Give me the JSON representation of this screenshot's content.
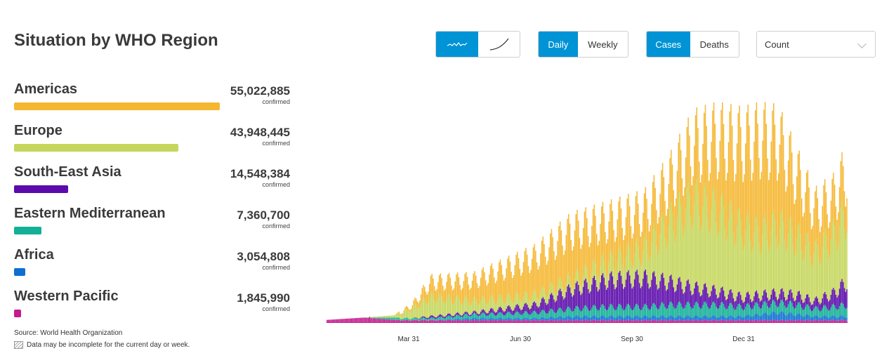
{
  "title": "Situation by WHO Region",
  "controls": {
    "chart_style": {
      "options": [
        "trend-icon",
        "cumulative-curve-icon"
      ],
      "selected": 0
    },
    "period": {
      "options": [
        "Daily",
        "Weekly"
      ],
      "selected": 0
    },
    "measure": {
      "options": [
        "Cases",
        "Deaths"
      ],
      "selected": 0
    },
    "scale_select": {
      "value": "Count",
      "icon": "chevron-down-icon"
    }
  },
  "regions": [
    {
      "name": "Americas",
      "value": "55,022,885",
      "count": 55022885,
      "sub": "confirmed",
      "color": "#f5b731"
    },
    {
      "name": "Europe",
      "value": "43,948,445",
      "count": 43948445,
      "sub": "confirmed",
      "color": "#c5d65b"
    },
    {
      "name": "South-East Asia",
      "value": "14,548,384",
      "count": 14548384,
      "sub": "confirmed",
      "color": "#5b0aab"
    },
    {
      "name": "Eastern Mediterranean",
      "value": "7,360,700",
      "count": 7360700,
      "sub": "confirmed",
      "color": "#12b096"
    },
    {
      "name": "Africa",
      "value": "3,054,808",
      "count": 3054808,
      "sub": "confirmed",
      "color": "#0f6fd1"
    },
    {
      "name": "Western Pacific",
      "value": "1,845,990",
      "count": 1845990,
      "sub": "confirmed",
      "color": "#c41b8e"
    }
  ],
  "footer": {
    "source": "Source: World Health Organization",
    "note": "Data may be incomplete for the current day or week."
  },
  "chart_data": {
    "type": "bar",
    "stacked": true,
    "title": "",
    "xlabel": "",
    "ylabel": "",
    "xticks": [
      "Mar 31",
      "Jun 30",
      "Sep 30",
      "Dec 31"
    ],
    "grid": false,
    "x_range": [
      "Jan 3",
      "Feb 17"
    ],
    "y_axis_labels_shown": false,
    "series_order_bottom_to_top": [
      "Western Pacific",
      "Africa",
      "Eastern Mediterranean",
      "South-East Asia",
      "Europe",
      "Americas"
    ],
    "keypoints": [
      {
        "day": 0,
        "Western Pacific": 0.01,
        "Africa": 0,
        "Eastern Mediterranean": 0,
        "South-East Asia": 0,
        "Europe": 0,
        "Americas": 0
      },
      {
        "day": 30,
        "Western Pacific": 0.02,
        "Africa": 0,
        "Eastern Mediterranean": 0,
        "South-East Asia": 0,
        "Europe": 0,
        "Americas": 0
      },
      {
        "day": 55,
        "Western Pacific": 0.01,
        "Africa": 0,
        "Eastern Mediterranean": 0.01,
        "South-East Asia": 0,
        "Europe": 0.01,
        "Americas": 0
      },
      {
        "day": 70,
        "Western Pacific": 0.01,
        "Africa": 0,
        "Eastern Mediterranean": 0.01,
        "South-East Asia": 0,
        "Europe": 0.05,
        "Americas": 0.02
      },
      {
        "day": 85,
        "Western Pacific": 0.01,
        "Africa": 0,
        "Eastern Mediterranean": 0.01,
        "South-East Asia": 0.01,
        "Europe": 0.1,
        "Americas": 0.08
      },
      {
        "day": 120,
        "Western Pacific": 0.01,
        "Africa": 0.01,
        "Eastern Mediterranean": 0.02,
        "South-East Asia": 0.01,
        "Europe": 0.06,
        "Americas": 0.11
      },
      {
        "day": 170,
        "Western Pacific": 0.01,
        "Africa": 0.01,
        "Eastern Mediterranean": 0.03,
        "South-East Asia": 0.04,
        "Europe": 0.05,
        "Americas": 0.2
      },
      {
        "day": 200,
        "Western Pacific": 0.01,
        "Africa": 0.02,
        "Eastern Mediterranean": 0.04,
        "South-East Asia": 0.1,
        "Europe": 0.05,
        "Americas": 0.26
      },
      {
        "day": 230,
        "Western Pacific": 0.01,
        "Africa": 0.02,
        "Eastern Mediterranean": 0.05,
        "South-East Asia": 0.14,
        "Europe": 0.09,
        "Americas": 0.22
      },
      {
        "day": 260,
        "Western Pacific": 0.01,
        "Africa": 0.02,
        "Eastern Mediterranean": 0.05,
        "South-East Asia": 0.15,
        "Europe": 0.15,
        "Americas": 0.2
      },
      {
        "day": 280,
        "Western Pacific": 0.01,
        "Africa": 0.02,
        "Eastern Mediterranean": 0.06,
        "South-East Asia": 0.12,
        "Europe": 0.3,
        "Americas": 0.22
      },
      {
        "day": 300,
        "Western Pacific": 0.01,
        "Africa": 0.02,
        "Eastern Mediterranean": 0.06,
        "South-East Asia": 0.09,
        "Europe": 0.45,
        "Americas": 0.3
      },
      {
        "day": 320,
        "Western Pacific": 0.01,
        "Africa": 0.02,
        "Eastern Mediterranean": 0.06,
        "South-East Asia": 0.07,
        "Europe": 0.42,
        "Americas": 0.38
      },
      {
        "day": 340,
        "Western Pacific": 0.01,
        "Africa": 0.02,
        "Eastern Mediterranean": 0.05,
        "South-East Asia": 0.05,
        "Europe": 0.36,
        "Americas": 0.45
      },
      {
        "day": 355,
        "Western Pacific": 0.01,
        "Africa": 0.03,
        "Eastern Mediterranean": 0.05,
        "South-East Asia": 0.05,
        "Europe": 0.32,
        "Americas": 0.5
      },
      {
        "day": 370,
        "Western Pacific": 0.01,
        "Africa": 0.04,
        "Eastern Mediterranean": 0.05,
        "South-East Asia": 0.05,
        "Europe": 0.35,
        "Americas": 0.45
      },
      {
        "day": 385,
        "Western Pacific": 0.01,
        "Africa": 0.03,
        "Eastern Mediterranean": 0.05,
        "South-East Asia": 0.05,
        "Europe": 0.3,
        "Americas": 0.33
      },
      {
        "day": 400,
        "Western Pacific": 0.01,
        "Africa": 0.02,
        "Eastern Mediterranean": 0.04,
        "South-East Asia": 0.04,
        "Europe": 0.25,
        "Americas": 0.23
      },
      {
        "day": 415,
        "Western Pacific": 0.01,
        "Africa": 0.02,
        "Eastern Mediterranean": 0.05,
        "South-East Asia": 0.07,
        "Europe": 0.3,
        "Americas": 0.2
      },
      {
        "day": 426,
        "Western Pacific": 0.01,
        "Africa": 0.02,
        "Eastern Mediterranean": 0.06,
        "South-East Asia": 0.12,
        "Europe": 0.36,
        "Americas": 0.22
      }
    ],
    "ylim": [
      0,
      1
    ]
  }
}
